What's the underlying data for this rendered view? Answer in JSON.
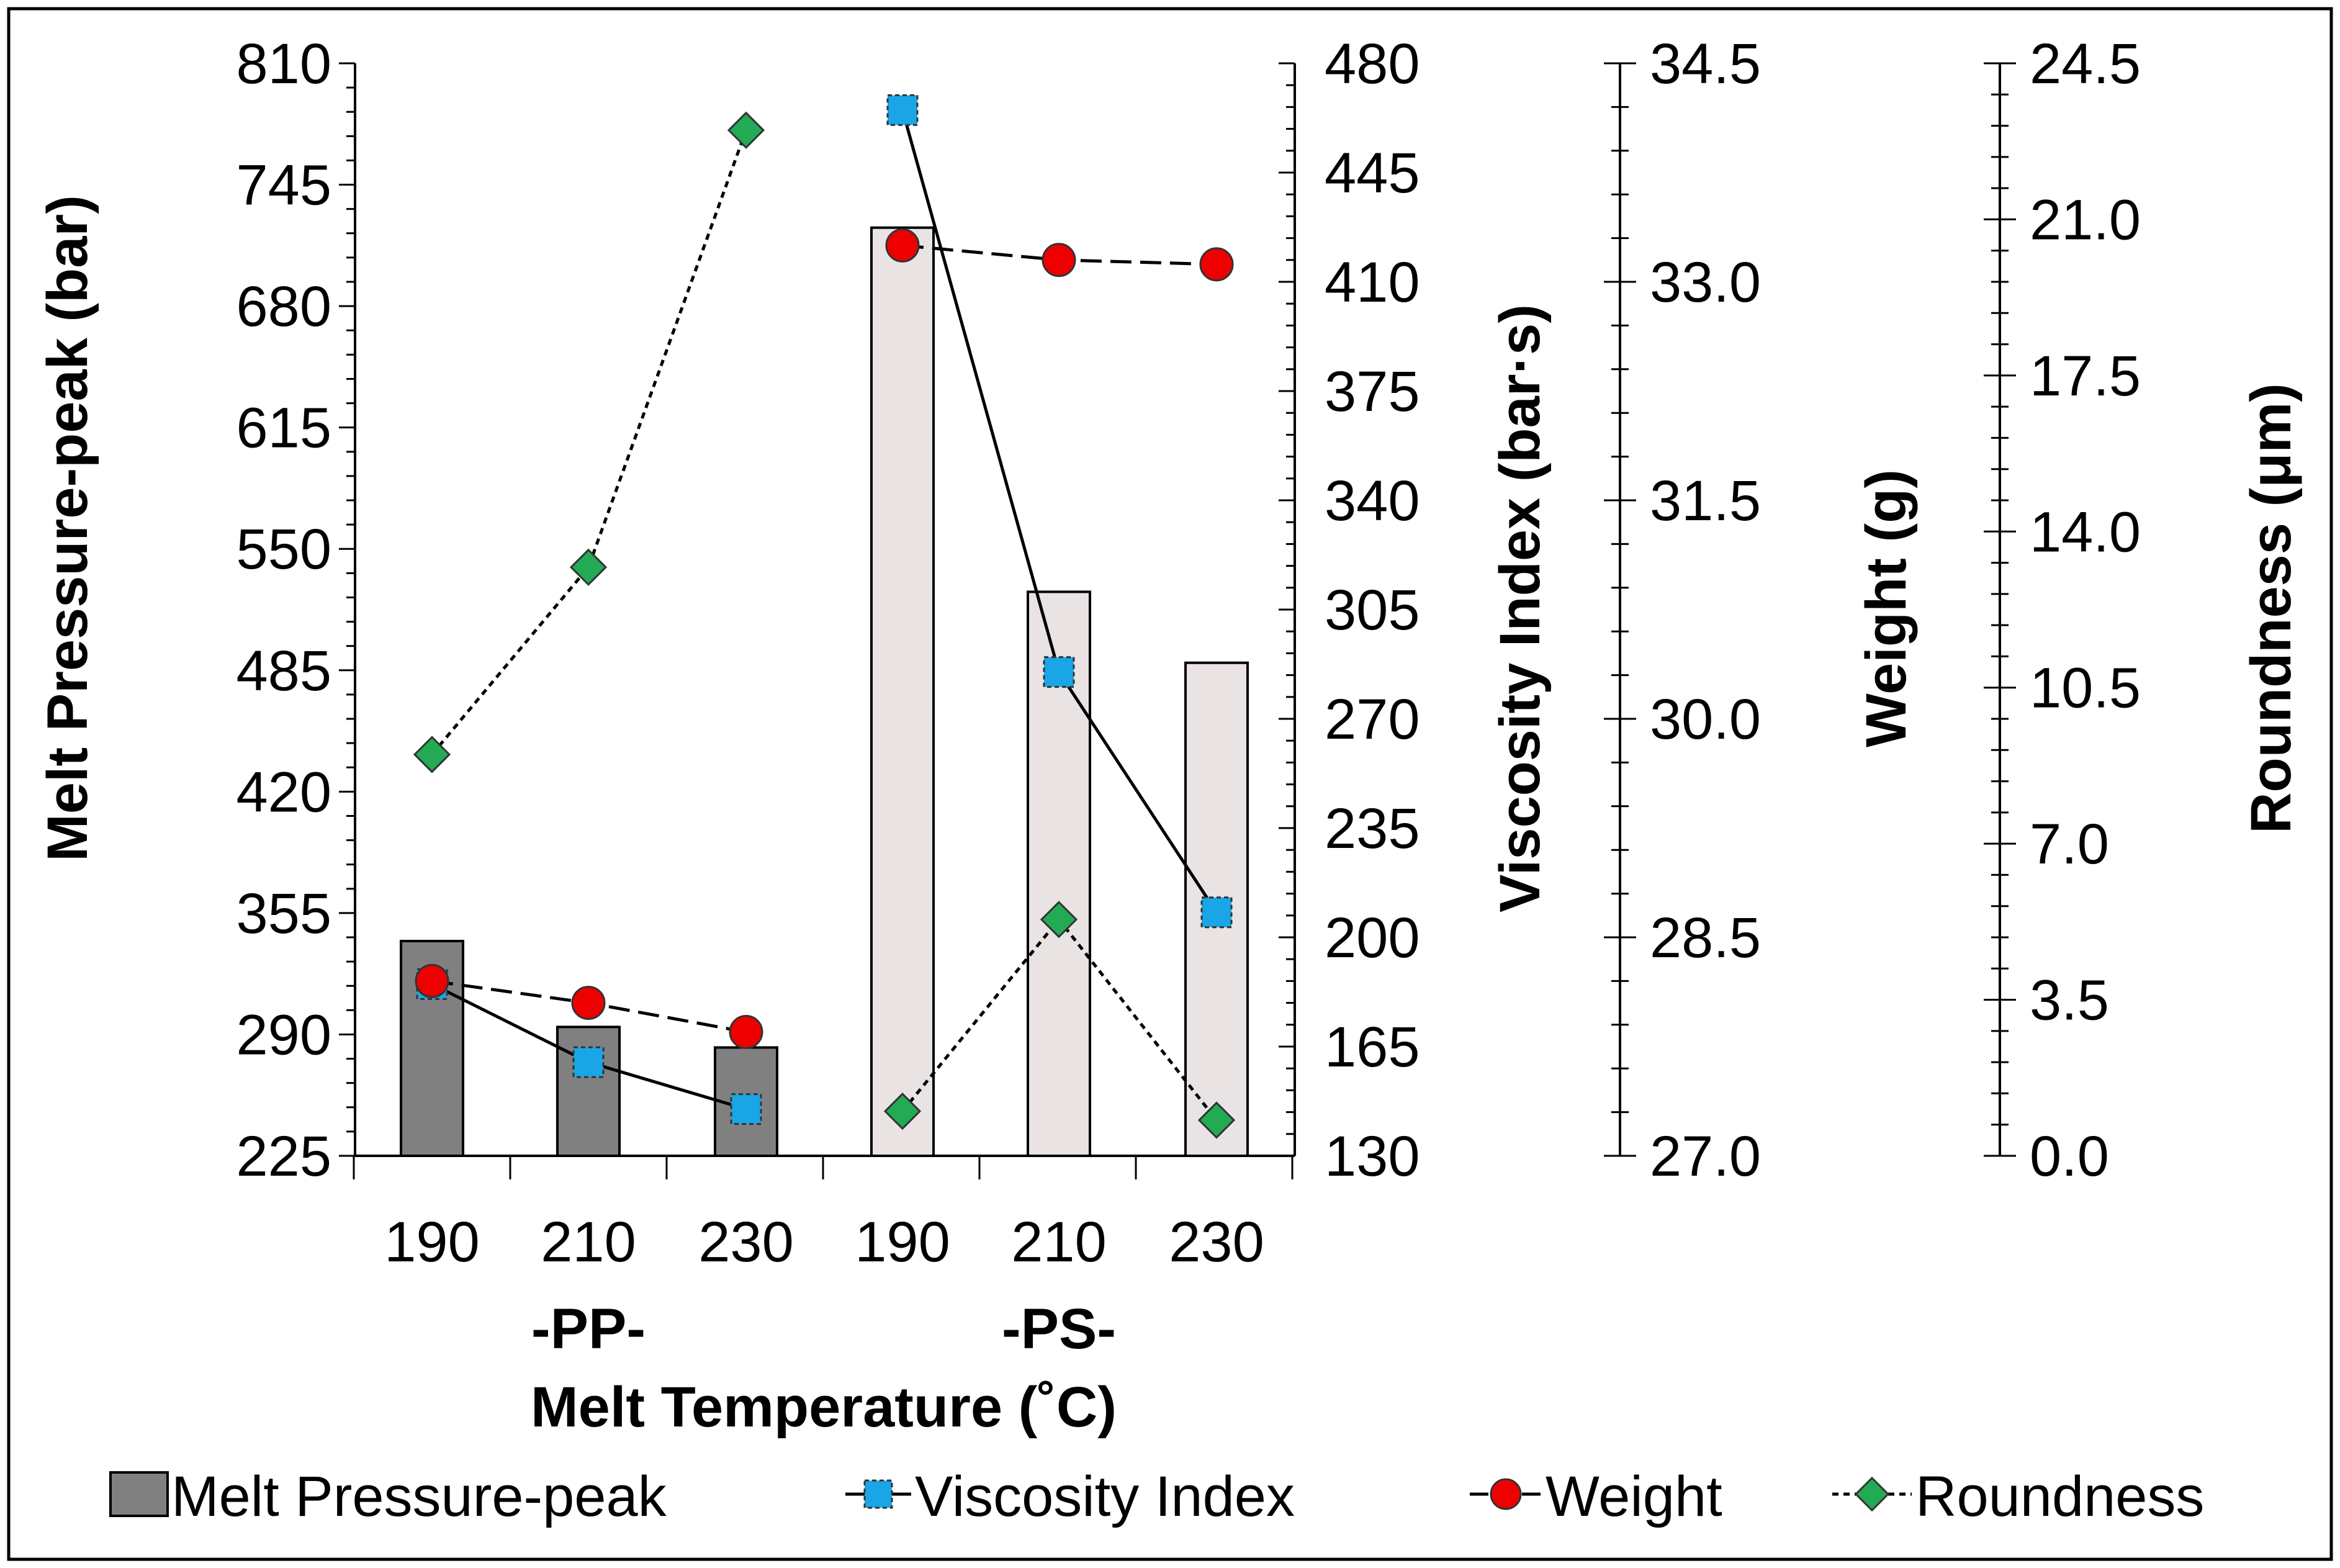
{
  "chart_data": {
    "type": "bar",
    "categories": [
      "190",
      "210",
      "230",
      "190",
      "210",
      "230"
    ],
    "groups": [
      {
        "label": "-PP-",
        "categories": [
          "190",
          "210",
          "230"
        ]
      },
      {
        "label": "-PS-",
        "categories": [
          "190",
          "210",
          "230"
        ]
      }
    ],
    "xlabel": "Melt Temperature (˚C)",
    "axes": {
      "pressure": {
        "label": "Melt Pressure-peak (bar)",
        "min": 225,
        "max": 810,
        "ticks": [
          225,
          290,
          355,
          420,
          485,
          550,
          615,
          680,
          745,
          810
        ],
        "tick_labels": [
          "225",
          "290",
          "355",
          "420",
          "485",
          "550",
          "615",
          "680",
          "745",
          "810"
        ]
      },
      "viscosity": {
        "label": "Viscosity Index (bar·s)",
        "min": 130,
        "max": 480,
        "ticks": [
          130,
          165,
          200,
          235,
          270,
          305,
          340,
          375,
          410,
          445,
          480
        ],
        "tick_labels": [
          "130",
          "165",
          "200",
          "235",
          "270",
          "305",
          "340",
          "375",
          "410",
          "445",
          "480"
        ]
      },
      "weight": {
        "label": "Weight (g)",
        "min": 27.0,
        "max": 34.5,
        "ticks": [
          27.0,
          28.5,
          30.0,
          31.5,
          33.0,
          34.5
        ],
        "tick_labels": [
          "27.0",
          "28.5",
          "30.0",
          "31.5",
          "33.0",
          "34.5"
        ]
      },
      "roundness": {
        "label": "Roundness (μm)",
        "min": 0.0,
        "max": 24.5,
        "ticks": [
          0.0,
          3.5,
          7.0,
          10.5,
          14.0,
          17.5,
          21.0,
          24.5
        ],
        "tick_labels": [
          "0.0",
          "3.5",
          "7.0",
          "10.5",
          "14.0",
          "17.5",
          "21.0",
          "24.5"
        ]
      }
    },
    "series": [
      {
        "name": "Melt Pressure-peak",
        "type": "bar",
        "axis": "pressure",
        "values": [
          340,
          294,
          283,
          722,
          527,
          489
        ],
        "colors": [
          "#808080",
          "#808080",
          "#808080",
          "#e9e3e3",
          "#e9e3e3",
          "#e9e3e3"
        ]
      },
      {
        "name": "Viscosity Index",
        "type": "line",
        "axis": "viscosity",
        "marker": "square",
        "line_style": "solid",
        "color": "#1aa6e6",
        "values": [
          185,
          160,
          145,
          465,
          285,
          208
        ]
      },
      {
        "name": "Weight",
        "type": "line",
        "axis": "weight",
        "marker": "circle",
        "line_style": "dashed",
        "color": "#ee0000",
        "values": [
          28.2,
          28.05,
          27.85,
          33.25,
          33.15,
          33.12
        ]
      },
      {
        "name": "Roundness",
        "type": "line",
        "axis": "roundness",
        "marker": "diamond",
        "line_style": "dotted",
        "color": "#22aa55",
        "values": [
          9.0,
          13.2,
          23.0,
          1.0,
          5.3,
          0.8
        ]
      }
    ],
    "legend": {
      "position": "bottom",
      "items": [
        "Melt Pressure-peak",
        "Viscosity Index",
        "Weight",
        "Roundness"
      ]
    }
  }
}
